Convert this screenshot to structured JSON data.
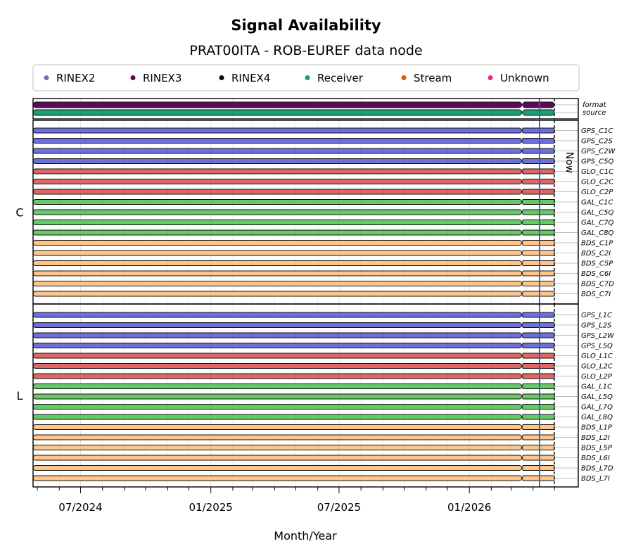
{
  "chart_data": {
    "type": "timeline",
    "title": "Signal Availability",
    "subtitle": "PRAT00ITA - ROB-EUREF data node",
    "xlabel": "Month/Year",
    "x_ticks": [
      "07/2024",
      "01/2025",
      "07/2025",
      "01/2026"
    ],
    "x_range": [
      "2024-04-25",
      "2026-05-01"
    ],
    "now_label": "Now",
    "now_date": "2026-04-10",
    "split_date": "2026-03-16",
    "legend": [
      {
        "name": "RINEX2",
        "color": "#7570b3"
      },
      {
        "name": "RINEX3",
        "color": "#5c0a5a"
      },
      {
        "name": "RINEX4",
        "color": "#1a0212"
      },
      {
        "name": "Receiver",
        "color": "#1b9e77"
      },
      {
        "name": "Stream",
        "color": "#d95f02"
      },
      {
        "name": "Unknown",
        "color": "#e7298a"
      }
    ],
    "meta_rows": [
      {
        "label": "format",
        "color": "#5c0a5a",
        "start": "2024-04-25",
        "end": "2026-04-10"
      },
      {
        "label": "source",
        "color": "#1b9e77",
        "start": "2024-04-25",
        "end": "2026-04-10"
      }
    ],
    "groups": [
      {
        "name": "C",
        "signals": [
          {
            "label": "GPS_C1C",
            "color": "#6f6fdc"
          },
          {
            "label": "GPS_C2S",
            "color": "#6f6fdc"
          },
          {
            "label": "GPS_C2W",
            "color": "#6f6fdc"
          },
          {
            "label": "GPS_C5Q",
            "color": "#6f6fdc"
          },
          {
            "label": "GLO_C1C",
            "color": "#e06666"
          },
          {
            "label": "GLO_C2C",
            "color": "#e06666"
          },
          {
            "label": "GLO_C2P",
            "color": "#e06666"
          },
          {
            "label": "GAL_C1C",
            "color": "#66c966"
          },
          {
            "label": "GAL_C5Q",
            "color": "#66c966"
          },
          {
            "label": "GAL_C7Q",
            "color": "#66c966"
          },
          {
            "label": "GAL_C8Q",
            "color": "#66c966"
          },
          {
            "label": "BDS_C1P",
            "color": "#ffc48a"
          },
          {
            "label": "BDS_C2I",
            "color": "#ffc48a"
          },
          {
            "label": "BDS_C5P",
            "color": "#ffc48a"
          },
          {
            "label": "BDS_C6I",
            "color": "#ffc48a"
          },
          {
            "label": "BDS_C7D",
            "color": "#ffc48a"
          },
          {
            "label": "BDS_C7I",
            "color": "#ffc48a"
          }
        ]
      },
      {
        "name": "L",
        "signals": [
          {
            "label": "GPS_L1C",
            "color": "#6f6fdc"
          },
          {
            "label": "GPS_L2S",
            "color": "#6f6fdc"
          },
          {
            "label": "GPS_L2W",
            "color": "#6f6fdc"
          },
          {
            "label": "GPS_L5Q",
            "color": "#6f6fdc"
          },
          {
            "label": "GLO_L1C",
            "color": "#e06666"
          },
          {
            "label": "GLO_L2C",
            "color": "#e06666"
          },
          {
            "label": "GLO_L2P",
            "color": "#e06666"
          },
          {
            "label": "GAL_L1C",
            "color": "#66c966"
          },
          {
            "label": "GAL_L5Q",
            "color": "#66c966"
          },
          {
            "label": "GAL_L7Q",
            "color": "#66c966"
          },
          {
            "label": "GAL_L8Q",
            "color": "#66c966"
          },
          {
            "label": "BDS_L1P",
            "color": "#ffc48a"
          },
          {
            "label": "BDS_L2I",
            "color": "#ffc48a"
          },
          {
            "label": "BDS_L5P",
            "color": "#ffc48a"
          },
          {
            "label": "BDS_L6I",
            "color": "#ffc48a"
          },
          {
            "label": "BDS_L7D",
            "color": "#ffc48a"
          },
          {
            "label": "BDS_L7I",
            "color": "#ffc48a"
          }
        ]
      }
    ]
  }
}
